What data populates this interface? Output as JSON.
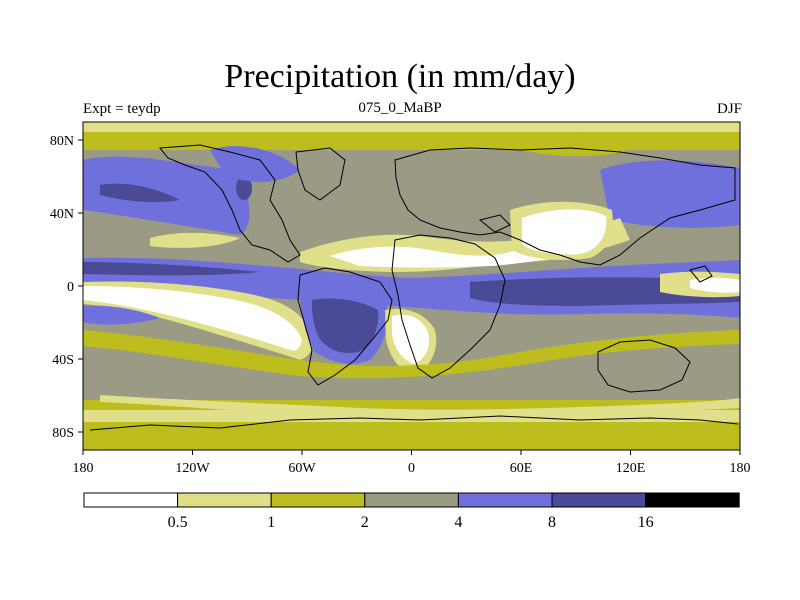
{
  "title": "Precipitation (in mm/day)",
  "experiment": "Expt = teydp",
  "period_label": "075_0_MaBP",
  "season": "DJF",
  "lon_ticks": [
    "180",
    "120W",
    "60W",
    "0",
    "60E",
    "120E",
    "180"
  ],
  "lat_ticks": [
    "80N",
    "40N",
    "0",
    "40S",
    "80S"
  ],
  "colorbar": {
    "levels": [
      "0.5",
      "1",
      "2",
      "4",
      "8",
      "16"
    ],
    "colors": [
      "#ffffff",
      "#e0e08a",
      "#bdbd1e",
      "#9b9a85",
      "#7070dd",
      "#4a4a96",
      "#000000"
    ]
  },
  "colors": {
    "white": "#ffffff",
    "light_yellow": "#e0e08a",
    "olive": "#bdbd1e",
    "gray": "#9b9a85",
    "blue": "#7070dd",
    "dark_blue": "#4a4a96"
  }
}
